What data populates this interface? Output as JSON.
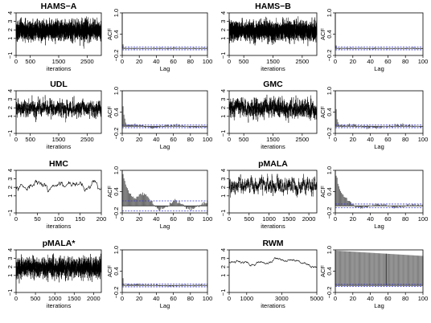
{
  "chart_data": [
    {
      "type": "line",
      "title": "HAMS−A",
      "xlabel": "iterations",
      "ylabel": "",
      "xlim": [
        0,
        3000
      ],
      "ylim": [
        -1,
        4
      ],
      "xticks": [
        "0",
        "500",
        "1500",
        "2500"
      ],
      "xtick_values": [
        0,
        500,
        1500,
        2500
      ],
      "yticks": [
        "−1",
        "1",
        "2",
        "3",
        "4"
      ],
      "ytick_values": [
        -1,
        1,
        2,
        3,
        4
      ],
      "trace": {
        "n": 3000,
        "mean": 1.9,
        "sd": 0.55,
        "rho": 0.1,
        "min": -0.4,
        "max": 3.6
      }
    },
    {
      "type": "bar",
      "title": "",
      "xlabel": "Lag",
      "ylabel": "ACF",
      "xlim": [
        0,
        100
      ],
      "ylim": [
        -0.2,
        1.0
      ],
      "xticks": [
        "0",
        "20",
        "40",
        "60",
        "80",
        "100"
      ],
      "xtick_values": [
        0,
        20,
        40,
        60,
        80,
        100
      ],
      "yticks": [
        "−0.2",
        "0.4",
        "1.0"
      ],
      "ytick_values": [
        -0.2,
        0.4,
        1.0
      ],
      "ci": 0.04,
      "acf": {
        "lag0": 1.0,
        "decay": 0.12,
        "long": 0.0,
        "long_tau": 50,
        "noise": 0.012
      }
    },
    {
      "type": "line",
      "title": "HAMS−B",
      "xlabel": "iterations",
      "ylabel": "",
      "xlim": [
        0,
        3000
      ],
      "ylim": [
        -1,
        4
      ],
      "xticks": [
        "0",
        "500",
        "1500",
        "2500"
      ],
      "xtick_values": [
        0,
        500,
        1500,
        2500
      ],
      "yticks": [
        "−1",
        "1",
        "2",
        "3",
        "4"
      ],
      "ytick_values": [
        -1,
        1,
        2,
        3,
        4
      ],
      "trace": {
        "n": 3000,
        "mean": 1.9,
        "sd": 0.55,
        "rho": 0.1,
        "min": -0.4,
        "max": 3.6
      }
    },
    {
      "type": "bar",
      "title": "",
      "xlabel": "Lag",
      "ylabel": "ACF",
      "xlim": [
        0,
        100
      ],
      "ylim": [
        -0.2,
        1.0
      ],
      "xticks": [
        "0",
        "20",
        "40",
        "60",
        "80",
        "100"
      ],
      "xtick_values": [
        0,
        20,
        40,
        60,
        80,
        100
      ],
      "yticks": [
        "−0.2",
        "0.4",
        "1.0"
      ],
      "ytick_values": [
        -0.2,
        0.4,
        1.0
      ],
      "ci": 0.04,
      "acf": {
        "lag0": 1.0,
        "decay": 0.1,
        "long": 0.0,
        "long_tau": 50,
        "noise": 0.012
      }
    },
    {
      "type": "line",
      "title": "UDL",
      "xlabel": "iterations",
      "ylabel": "",
      "xlim": [
        0,
        3000
      ],
      "ylim": [
        -1,
        4
      ],
      "xticks": [
        "0",
        "500",
        "1500",
        "2500"
      ],
      "xtick_values": [
        0,
        500,
        1500,
        2500
      ],
      "yticks": [
        "−1",
        "1",
        "2",
        "3",
        "4"
      ],
      "ytick_values": [
        -1,
        1,
        2,
        3,
        4
      ],
      "trace": {
        "n": 3000,
        "mean": 1.9,
        "sd": 0.45,
        "rho": 0.8,
        "min": 0.2,
        "max": 3.6
      }
    },
    {
      "type": "bar",
      "title": "",
      "xlabel": "Lag",
      "ylabel": "ACF",
      "xlim": [
        0,
        100
      ],
      "ylim": [
        -0.2,
        1.0
      ],
      "xticks": [
        "0",
        "20",
        "40",
        "60",
        "80",
        "100"
      ],
      "xtick_values": [
        0,
        20,
        40,
        60,
        80,
        100
      ],
      "yticks": [
        "−0.2",
        "0.4",
        "1.0"
      ],
      "ytick_values": [
        -0.2,
        0.4,
        1.0
      ],
      "ci": 0.04,
      "acf": {
        "lag0": 1.0,
        "decay": 0.55,
        "long": 0.05,
        "long_tau": 25,
        "noise": 0.02
      }
    },
    {
      "type": "line",
      "title": "GMC",
      "xlabel": "iterations",
      "ylabel": "",
      "xlim": [
        0,
        3000
      ],
      "ylim": [
        -1,
        4
      ],
      "xticks": [
        "0",
        "500",
        "1500",
        "2500"
      ],
      "xtick_values": [
        0,
        500,
        1500,
        2500
      ],
      "yticks": [
        "−1",
        "1",
        "2",
        "3",
        "4"
      ],
      "ytick_values": [
        -1,
        1,
        2,
        3,
        4
      ],
      "trace": {
        "n": 3000,
        "mean": 1.9,
        "sd": 0.5,
        "rho": 0.75,
        "min": 0.0,
        "max": 3.7
      }
    },
    {
      "type": "bar",
      "title": "",
      "xlabel": "Lag",
      "ylabel": "ACF",
      "xlim": [
        0,
        100
      ],
      "ylim": [
        -0.2,
        1.0
      ],
      "xticks": [
        "0",
        "20",
        "40",
        "60",
        "80",
        "100"
      ],
      "xtick_values": [
        0,
        20,
        40,
        60,
        80,
        100
      ],
      "yticks": [
        "−0.2",
        "0.4",
        "1.0"
      ],
      "ytick_values": [
        -0.2,
        0.4,
        1.0
      ],
      "ci": 0.04,
      "acf": {
        "lag0": 1.0,
        "decay": 0.45,
        "long": 0.05,
        "long_tau": 30,
        "noise": 0.025
      }
    },
    {
      "type": "line",
      "title": "HMC",
      "xlabel": "iterations",
      "ylabel": "",
      "xlim": [
        0,
        200
      ],
      "ylim": [
        -1,
        4
      ],
      "xticks": [
        "0",
        "50",
        "100",
        "150",
        "200"
      ],
      "xtick_values": [
        0,
        50,
        100,
        150,
        200
      ],
      "yticks": [
        "−1",
        "1",
        "2",
        "3",
        "4"
      ],
      "ytick_values": [
        -1,
        1,
        2,
        3,
        4
      ],
      "trace": {
        "n": 200,
        "mean": 2.0,
        "sd": 0.35,
        "rho": 0.9,
        "min": 1.0,
        "max": 3.0
      }
    },
    {
      "type": "bar",
      "title": "",
      "xlabel": "Lag",
      "ylabel": "ACF",
      "xlim": [
        0,
        100
      ],
      "ylim": [
        -0.2,
        1.0
      ],
      "xticks": [
        "0",
        "20",
        "40",
        "60",
        "80",
        "100"
      ],
      "xtick_values": [
        0,
        20,
        40,
        60,
        80,
        100
      ],
      "yticks": [
        "−0.2",
        "0.4",
        "1.0"
      ],
      "ytick_values": [
        -0.2,
        0.4,
        1.0
      ],
      "ci": 0.14,
      "acf": {
        "lag0": 1.0,
        "decay": 0.93,
        "long": -0.2,
        "long_tau": 18,
        "noise": 0.03
      }
    },
    {
      "type": "line",
      "title": "pMALA",
      "xlabel": "iterations",
      "ylabel": "",
      "xlim": [
        0,
        2200
      ],
      "ylim": [
        -1,
        4
      ],
      "xticks": [
        "0",
        "500",
        "1000",
        "1500",
        "2000"
      ],
      "xtick_values": [
        0,
        500,
        1000,
        1500,
        2000
      ],
      "yticks": [
        "−1",
        "1",
        "2",
        "3",
        "4"
      ],
      "ytick_values": [
        -1,
        1,
        2,
        3,
        4
      ],
      "trace": {
        "n": 2200,
        "mean": 2.2,
        "sd": 0.45,
        "rho": 0.85,
        "min": 0.8,
        "max": 3.6
      }
    },
    {
      "type": "bar",
      "title": "",
      "xlabel": "Lag",
      "ylabel": "ACF",
      "xlim": [
        0,
        100
      ],
      "ylim": [
        -0.2,
        1.0
      ],
      "xticks": [
        "0",
        "20",
        "40",
        "60",
        "80",
        "100"
      ],
      "xtick_values": [
        0,
        20,
        40,
        60,
        80,
        100
      ],
      "yticks": [
        "−0.2",
        "0.4",
        "1.0"
      ],
      "ytick_values": [
        -0.2,
        0.4,
        1.0
      ],
      "ci": 0.05,
      "acf": {
        "lag0": 1.0,
        "decay": 0.85,
        "long": 0.08,
        "long_tau": 20,
        "noise": 0.02
      }
    },
    {
      "type": "line",
      "title": "pMALA*",
      "xlabel": "iterations",
      "ylabel": "",
      "xlim": [
        0,
        2200
      ],
      "ylim": [
        -1,
        4
      ],
      "xticks": [
        "0",
        "500",
        "1000",
        "1500",
        "2000"
      ],
      "xtick_values": [
        0,
        500,
        1000,
        1500,
        2000
      ],
      "yticks": [
        "−1",
        "1",
        "2",
        "3",
        "4"
      ],
      "ytick_values": [
        -1,
        1,
        2,
        3,
        4
      ],
      "trace": {
        "n": 2200,
        "mean": 1.9,
        "sd": 0.55,
        "rho": 0.15,
        "min": -0.4,
        "max": 3.6
      }
    },
    {
      "type": "bar",
      "title": "",
      "xlabel": "Lag",
      "ylabel": "ACF",
      "xlim": [
        0,
        100
      ],
      "ylim": [
        -0.2,
        1.0
      ],
      "xticks": [
        "0",
        "20",
        "40",
        "60",
        "80",
        "100"
      ],
      "xtick_values": [
        0,
        20,
        40,
        60,
        80,
        100
      ],
      "yticks": [
        "−0.2",
        "0.4",
        "1.0"
      ],
      "ytick_values": [
        -0.2,
        0.4,
        1.0
      ],
      "ci": 0.04,
      "acf": {
        "lag0": 1.0,
        "decay": 0.2,
        "long": 0.03,
        "long_tau": 40,
        "noise": 0.015
      }
    },
    {
      "type": "line",
      "title": "RWM",
      "xlabel": "iterations",
      "ylabel": "",
      "xlim": [
        0,
        5000
      ],
      "ylim": [
        -1,
        4
      ],
      "xticks": [
        "0",
        "1000",
        "3000",
        "5000"
      ],
      "xtick_values": [
        0,
        1000,
        3000,
        5000
      ],
      "yticks": [
        "−1",
        "1",
        "2",
        "3",
        "4"
      ],
      "ytick_values": [
        -1,
        1,
        2,
        3,
        4
      ],
      "trace": {
        "n": 5000,
        "mean": 2.6,
        "sd": 0.25,
        "rho": 0.999,
        "min": 1.9,
        "max": 3.3
      }
    },
    {
      "type": "bar",
      "title": "",
      "xlabel": "Lag",
      "ylabel": "ACF",
      "xlim": [
        0,
        100
      ],
      "ylim": [
        -0.2,
        1.0
      ],
      "xticks": [
        "0",
        "20",
        "40",
        "60",
        "80",
        "100"
      ],
      "xtick_values": [
        0,
        20,
        40,
        60,
        80,
        100
      ],
      "yticks": [
        "−0.2",
        "0.4",
        "1.0"
      ],
      "ytick_values": [
        -0.2,
        0.4,
        1.0
      ],
      "ci": 0.03,
      "acf": {
        "lag0": 1.0,
        "decay": 0.998,
        "long": 0.0,
        "long_tau": 50,
        "noise": 0.0,
        "linear_from": 0.98,
        "linear_to": 0.83
      }
    }
  ]
}
